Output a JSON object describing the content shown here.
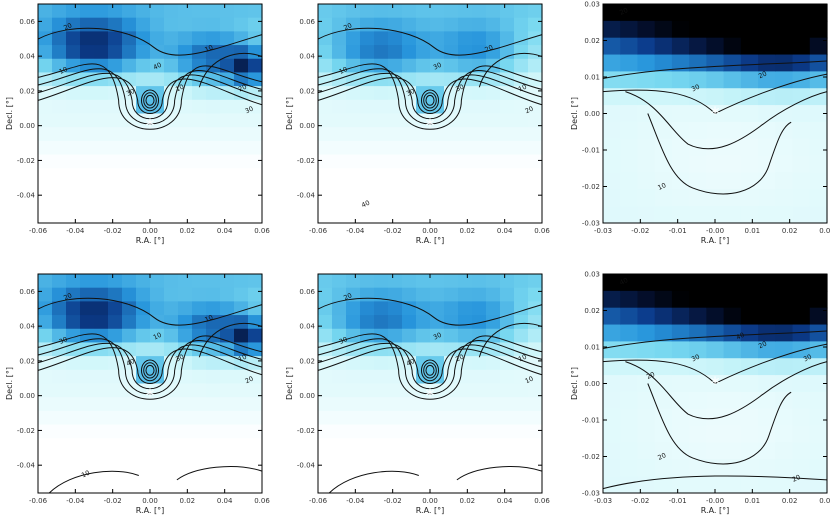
{
  "chart_data": [
    {
      "id": "top-left",
      "type": "heatmap",
      "xlabel": "R.A. [°]",
      "ylabel": "Decl. [°]",
      "xlim": [
        -0.06,
        0.06
      ],
      "ylim": [
        -0.056,
        0.07
      ],
      "xticks": [
        "-0.06",
        "-0.04",
        "-0.02",
        "0.00",
        "0.02",
        "0.04",
        "0.06"
      ],
      "yticks": [
        "-0.04",
        "-0.02",
        "0.00",
        "0.02",
        "0.04",
        "0.06"
      ],
      "contour_labels": [
        "10",
        "20",
        "30",
        "40",
        "10",
        "30",
        "20",
        "10"
      ],
      "marker": {
        "symbol": "*",
        "x": 0.0,
        "y": 0.0
      },
      "colormap": "white-cyan-blue-black"
    },
    {
      "id": "top-middle",
      "type": "heatmap",
      "xlabel": "R.A. [°]",
      "ylabel": "Decl. [°]",
      "xlim": [
        -0.06,
        0.06
      ],
      "ylim": [
        -0.056,
        0.07
      ],
      "xticks": [
        "-0.06",
        "-0.04",
        "-0.02",
        "0.00",
        "0.02",
        "0.04",
        "0.06"
      ],
      "yticks": [
        "-0.04",
        "-0.02",
        "0.00",
        "0.02",
        "0.04",
        "0.06"
      ],
      "contour_labels": [
        "10",
        "20",
        "30",
        "30",
        "30",
        "20",
        "10",
        "20",
        "40"
      ],
      "marker": {
        "symbol": "*",
        "x": 0.0,
        "y": 0.0
      },
      "colormap": "white-cyan-blue-black"
    },
    {
      "id": "top-right",
      "type": "heatmap",
      "xlabel": "R.A. [°]",
      "ylabel": "Decl. [°]",
      "xlim": [
        -0.03,
        0.03
      ],
      "ylim": [
        -0.03,
        0.03
      ],
      "xticks": [
        "-0.03",
        "-0.02",
        "-0.01",
        "-0.00",
        "0.01",
        "0.02",
        "0.03"
      ],
      "yticks": [
        "-0.03",
        "-0.02",
        "-0.01",
        "0.00",
        "0.01",
        "0.02",
        "0.03"
      ],
      "contour_labels": [
        "20",
        "30",
        "10",
        "20"
      ],
      "marker": {
        "symbol": "*",
        "x": 0.0,
        "y": 0.0
      },
      "colormap": "white-cyan-blue-black"
    },
    {
      "id": "bottom-left",
      "type": "heatmap",
      "xlabel": "R.A. [°]",
      "ylabel": "Decl. [°]",
      "xlim": [
        -0.06,
        0.06
      ],
      "ylim": [
        -0.056,
        0.07
      ],
      "xticks": [
        "-0.06",
        "-0.04",
        "-0.02",
        "0.00",
        "0.02",
        "0.04",
        "0.06"
      ],
      "yticks": [
        "-0.04",
        "-0.02",
        "0.00",
        "0.02",
        "0.04",
        "0.06"
      ],
      "contour_labels": [
        "30",
        "20",
        "40",
        "10",
        "30",
        "20",
        "10",
        "10",
        "10"
      ],
      "marker": {
        "symbol": "*",
        "x": 0.0,
        "y": 0.0
      },
      "colormap": "white-cyan-blue-black"
    },
    {
      "id": "bottom-middle",
      "type": "heatmap",
      "xlabel": "R.A. [°]",
      "ylabel": "Decl. [°]",
      "xlim": [
        -0.06,
        0.06
      ],
      "ylim": [
        -0.056,
        0.07
      ],
      "xticks": [
        "-0.06",
        "-0.04",
        "-0.02",
        "0.00",
        "0.02",
        "0.04",
        "0.06"
      ],
      "yticks": [
        "-0.04",
        "-0.02",
        "0.00",
        "0.02",
        "0.04",
        "0.06"
      ],
      "contour_labels": [
        "30",
        "20",
        "40",
        "30",
        "20",
        "10",
        "10"
      ],
      "marker": {
        "symbol": "*",
        "x": 0.0,
        "y": 0.0
      },
      "colormap": "white-cyan-blue-black"
    },
    {
      "id": "bottom-right",
      "type": "heatmap",
      "xlabel": "R.A. [°]",
      "ylabel": "Decl. [°]",
      "xlim": [
        -0.03,
        0.03
      ],
      "ylim": [
        -0.03,
        0.03
      ],
      "xticks": [
        "-0.03",
        "-0.02",
        "-0.01",
        "-0.00",
        "0.01",
        "0.02",
        "0.03"
      ],
      "yticks": [
        "-0.03",
        "-0.02",
        "-0.01",
        "0.00",
        "0.01",
        "0.02",
        "0.03"
      ],
      "contour_labels": [
        "40",
        "30",
        "20",
        "20",
        "30",
        "20",
        "40",
        "20"
      ],
      "marker": {
        "symbol": "*",
        "x": 0.0,
        "y": 0.0
      },
      "colormap": "white-cyan-blue-black"
    }
  ]
}
